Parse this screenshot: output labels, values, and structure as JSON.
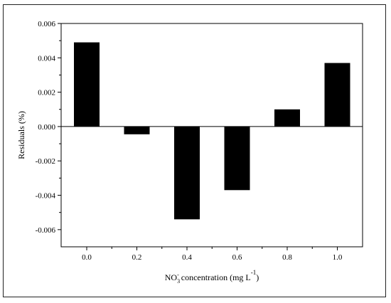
{
  "chart_data": {
    "type": "bar",
    "categories": [
      "0.0",
      "0.2",
      "0.4",
      "0.6",
      "0.8",
      "1.0"
    ],
    "values": [
      0.0049,
      -0.00045,
      -0.0054,
      -0.0037,
      0.001,
      0.0037
    ],
    "title": "",
    "ylabel": "Residuals (%)",
    "xlabel": {
      "prefix": "NO",
      "sub": "3",
      "sup": "-",
      "mid": " concentration (mg L",
      "exp": "-1",
      "suffix": ")"
    },
    "ylim": [
      -0.007,
      0.006
    ],
    "yticks": [
      "0.006",
      "0.004",
      "0.002",
      "0.000",
      "-0.002",
      "-0.004",
      "-0.006"
    ],
    "ytick_values": [
      0.006,
      0.004,
      0.002,
      0.0,
      -0.002,
      -0.004,
      -0.006
    ],
    "grid": false,
    "bar_color": "#000000"
  }
}
